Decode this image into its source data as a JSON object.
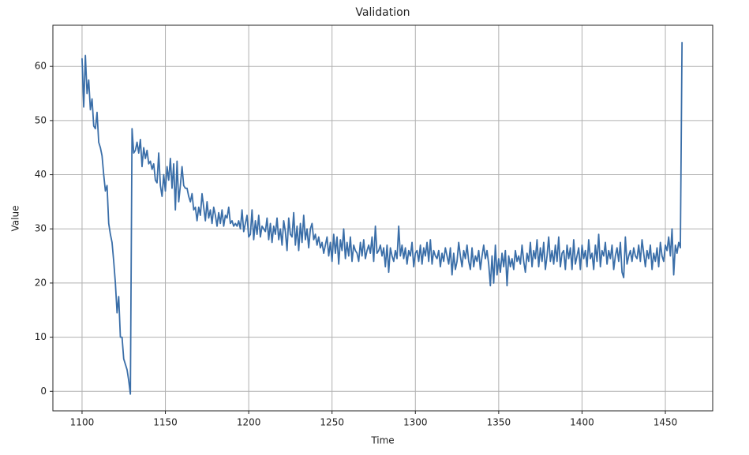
{
  "chart_data": {
    "type": "line",
    "title": "Validation",
    "x_label": "Time",
    "y_label": "Value",
    "color": "#3a6ea8",
    "grid": true,
    "xlim": [
      1082.5,
      1478.4
    ],
    "ylim": [
      -3.6,
      67.6
    ],
    "xticks": [
      1100,
      1150,
      1200,
      1250,
      1300,
      1350,
      1400,
      1450
    ],
    "yticks": [
      0,
      10,
      20,
      30,
      40,
      50,
      60
    ],
    "x": [
      1100,
      1101,
      1102,
      1103,
      1104,
      1105,
      1106,
      1107,
      1108,
      1109,
      1110,
      1111,
      1112,
      1113,
      1114,
      1115,
      1116,
      1117,
      1118,
      1119,
      1120,
      1121,
      1122,
      1123,
      1124,
      1125,
      1126,
      1127,
      1128,
      1129,
      1130,
      1131,
      1132,
      1133,
      1134,
      1135,
      1136,
      1137,
      1138,
      1139,
      1140,
      1141,
      1142,
      1143,
      1144,
      1145,
      1146,
      1147,
      1148,
      1149,
      1150,
      1151,
      1152,
      1153,
      1154,
      1155,
      1156,
      1157,
      1158,
      1159,
      1160,
      1161,
      1162,
      1163,
      1164,
      1165,
      1166,
      1167,
      1168,
      1169,
      1170,
      1171,
      1172,
      1173,
      1174,
      1175,
      1176,
      1177,
      1178,
      1179,
      1180,
      1181,
      1182,
      1183,
      1184,
      1185,
      1186,
      1187,
      1188,
      1189,
      1190,
      1191,
      1192,
      1193,
      1194,
      1195,
      1196,
      1197,
      1198,
      1199,
      1200,
      1201,
      1202,
      1203,
      1204,
      1205,
      1206,
      1207,
      1208,
      1209,
      1210,
      1211,
      1212,
      1213,
      1214,
      1215,
      1216,
      1217,
      1218,
      1219,
      1220,
      1221,
      1222,
      1223,
      1224,
      1225,
      1226,
      1227,
      1228,
      1229,
      1230,
      1231,
      1232,
      1233,
      1234,
      1235,
      1236,
      1237,
      1238,
      1239,
      1240,
      1241,
      1242,
      1243,
      1244,
      1245,
      1246,
      1247,
      1248,
      1249,
      1250,
      1251,
      1252,
      1253,
      1254,
      1255,
      1256,
      1257,
      1258,
      1259,
      1260,
      1261,
      1262,
      1263,
      1264,
      1265,
      1266,
      1267,
      1268,
      1269,
      1270,
      1271,
      1272,
      1273,
      1274,
      1275,
      1276,
      1277,
      1278,
      1279,
      1280,
      1281,
      1282,
      1283,
      1284,
      1285,
      1286,
      1287,
      1288,
      1289,
      1290,
      1291,
      1292,
      1293,
      1294,
      1295,
      1296,
      1297,
      1298,
      1299,
      1300,
      1301,
      1302,
      1303,
      1304,
      1305,
      1306,
      1307,
      1308,
      1309,
      1310,
      1311,
      1312,
      1313,
      1314,
      1315,
      1316,
      1317,
      1318,
      1319,
      1320,
      1321,
      1322,
      1323,
      1324,
      1325,
      1326,
      1327,
      1328,
      1329,
      1330,
      1331,
      1332,
      1333,
      1334,
      1335,
      1336,
      1337,
      1338,
      1339,
      1340,
      1341,
      1342,
      1343,
      1344,
      1345,
      1346,
      1347,
      1348,
      1349,
      1350,
      1351,
      1352,
      1353,
      1354,
      1355,
      1356,
      1357,
      1358,
      1359,
      1360,
      1361,
      1362,
      1363,
      1364,
      1365,
      1366,
      1367,
      1368,
      1369,
      1370,
      1371,
      1372,
      1373,
      1374,
      1375,
      1376,
      1377,
      1378,
      1379,
      1380,
      1381,
      1382,
      1383,
      1384,
      1385,
      1386,
      1387,
      1388,
      1389,
      1390,
      1391,
      1392,
      1393,
      1394,
      1395,
      1396,
      1397,
      1398,
      1399,
      1400,
      1401,
      1402,
      1403,
      1404,
      1405,
      1406,
      1407,
      1408,
      1409,
      1410,
      1411,
      1412,
      1413,
      1414,
      1415,
      1416,
      1417,
      1418,
      1419,
      1420,
      1421,
      1422,
      1423,
      1424,
      1425,
      1426,
      1427,
      1428,
      1429,
      1430,
      1431,
      1432,
      1433,
      1434,
      1435,
      1436,
      1437,
      1438,
      1439,
      1440,
      1441,
      1442,
      1443,
      1444,
      1445,
      1446,
      1447,
      1448,
      1449,
      1450,
      1451,
      1452,
      1453,
      1454,
      1455,
      1456,
      1457,
      1458,
      1459,
      1460
    ],
    "values": [
      61.5,
      52.5,
      62,
      55,
      57.5,
      52,
      54,
      49,
      48.5,
      51.5,
      46,
      45,
      43.5,
      40,
      37,
      38,
      31,
      29,
      27.5,
      24,
      20,
      14.5,
      17.5,
      10,
      10,
      6,
      5,
      4,
      2,
      -0.5,
      48.5,
      44,
      44.5,
      46,
      44,
      46.5,
      41.5,
      45,
      43,
      44.5,
      42,
      42.5,
      41,
      42,
      39,
      38.5,
      44,
      38,
      36,
      40,
      37,
      41.5,
      39,
      43,
      37.5,
      42,
      33.5,
      42.5,
      35,
      38,
      41.5,
      38,
      37.5,
      37.5,
      36,
      35,
      36.5,
      33.5,
      34,
      31.5,
      34,
      32.5,
      36.5,
      34,
      31.5,
      35,
      32,
      33.5,
      31,
      34,
      32.5,
      30.5,
      33,
      31,
      33.5,
      30.5,
      32.5,
      32,
      34,
      31,
      31.5,
      30.5,
      31,
      30.5,
      31.5,
      30,
      33.5,
      29.5,
      31,
      32.5,
      28.5,
      29,
      33.5,
      28,
      31.5,
      29,
      32.5,
      28.5,
      30.5,
      30,
      29.5,
      32,
      28,
      31,
      27.5,
      30.5,
      29,
      32,
      28,
      30,
      27,
      31.5,
      29.5,
      26,
      32,
      29,
      28.5,
      33,
      27,
      30.5,
      26,
      31,
      27.5,
      32.5,
      28,
      30,
      26.5,
      30,
      31,
      28,
      29,
      27,
      28.5,
      26.5,
      27.5,
      25.5,
      27,
      28.5,
      25,
      27.5,
      24,
      29,
      25.5,
      28.5,
      23.5,
      28,
      26,
      30,
      24.5,
      27.5,
      25,
      28.5,
      24,
      27,
      26,
      25.5,
      24,
      27.5,
      25,
      28,
      24.5,
      26,
      27,
      25.5,
      28.5,
      24,
      30.5,
      25.5,
      26,
      27,
      25,
      26.5,
      23,
      27,
      22,
      26.5,
      25,
      24,
      26,
      24.5,
      30.5,
      25,
      27,
      24.5,
      26.5,
      23.5,
      26,
      25,
      27.5,
      23,
      25.5,
      26,
      24,
      27,
      23.5,
      26.5,
      25,
      27.5,
      24,
      28,
      23.5,
      26,
      25,
      24.5,
      26,
      23,
      25.5,
      24,
      26.5,
      25,
      23.5,
      26.5,
      21.5,
      25.5,
      22.5,
      24,
      27.5,
      25,
      23,
      26,
      24.5,
      27,
      24,
      22.5,
      26.5,
      23,
      25,
      24,
      26,
      22.5,
      25,
      27,
      24.5,
      26,
      23.5,
      19.5,
      25,
      20,
      27,
      21.5,
      24.5,
      22,
      25.5,
      23,
      26,
      19.5,
      25,
      23,
      24.5,
      22.5,
      26,
      24,
      25,
      23.5,
      27,
      24,
      22,
      25.5,
      24,
      27.5,
      23,
      26,
      24.5,
      28,
      23,
      26.5,
      24,
      27.5,
      22.5,
      25,
      28.5,
      24,
      26,
      23.5,
      27,
      24,
      28.5,
      23,
      25.5,
      26,
      22.5,
      27,
      24.5,
      26.5,
      22.5,
      28,
      23.5,
      25,
      26.5,
      22.5,
      27,
      24.5,
      26,
      23,
      28,
      24.5,
      25.5,
      22.5,
      27,
      24,
      29,
      23,
      26,
      25,
      27.5,
      23.5,
      26,
      24.5,
      27,
      22.5,
      25,
      26.5,
      24,
      27.5,
      22,
      21,
      28.5,
      23.5,
      25,
      26,
      24,
      26.5,
      25,
      24.5,
      27,
      24,
      28,
      25.5,
      23,
      26,
      24.5,
      27,
      22.5,
      25.5,
      24,
      26.5,
      23,
      27.5,
      25,
      24,
      27,
      26,
      28.5,
      25,
      30,
      21.5,
      27,
      25.5,
      27.5,
      26.5,
      64.5
    ]
  }
}
